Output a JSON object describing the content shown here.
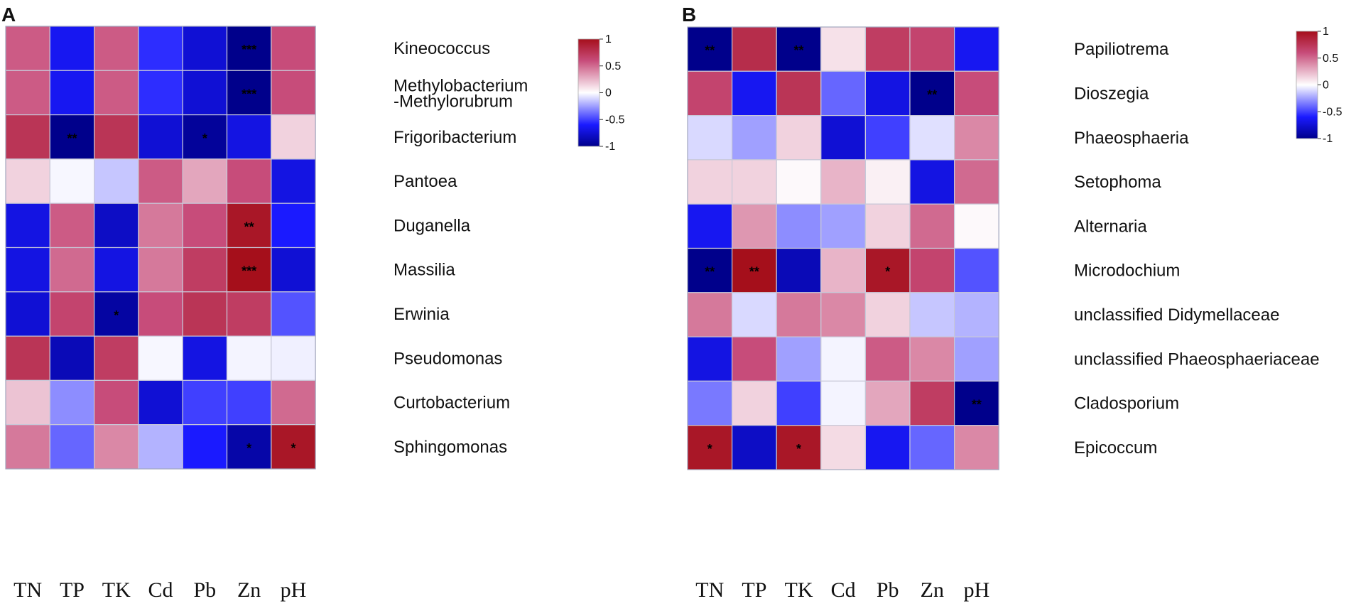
{
  "colors": {
    "negative": "#00008b",
    "mid_negative": "#1a1aff",
    "zero": "#ffffff",
    "mid_positive": "#c74c7a",
    "positive": "#a50f1b",
    "grid": "#c8c8d8"
  },
  "chart_data": [
    {
      "type": "heatmap",
      "panel": "A",
      "columns": [
        "TN",
        "TP",
        "TK",
        "Cd",
        "Pb",
        "Zn",
        "pH"
      ],
      "rows": [
        {
          "label": "Kineococcus",
          "values": [
            0.55,
            -0.65,
            0.55,
            -0.55,
            -0.75,
            -1.0,
            0.6
          ],
          "stars": [
            "",
            "",
            "",
            "",
            "",
            "***",
            ""
          ]
        },
        {
          "label": "Methylobacterium\n-Methylorubrum",
          "values": [
            0.55,
            -0.65,
            0.55,
            -0.55,
            -0.75,
            -1.0,
            0.6
          ],
          "stars": [
            "",
            "",
            "",
            "",
            "",
            "***",
            ""
          ]
        },
        {
          "label": "Frigoribacterium",
          "values": [
            0.75,
            -1.0,
            0.75,
            -0.75,
            -0.95,
            -0.7,
            0.15
          ],
          "stars": [
            "",
            "**",
            "",
            "",
            "*",
            "",
            ""
          ]
        },
        {
          "label": "Pantoea",
          "values": [
            0.15,
            -0.02,
            -0.15,
            0.55,
            0.3,
            0.6,
            -0.7
          ],
          "stars": [
            "",
            "",
            "",
            "",
            "",
            "",
            ""
          ]
        },
        {
          "label": "Duganella",
          "values": [
            -0.7,
            0.55,
            -0.8,
            0.45,
            0.6,
            0.95,
            -0.6
          ],
          "stars": [
            "",
            "",
            "",
            "",
            "",
            "**",
            ""
          ]
        },
        {
          "label": "Massilia",
          "values": [
            -0.7,
            0.5,
            -0.7,
            0.45,
            0.7,
            1.0,
            -0.75
          ],
          "stars": [
            "",
            "",
            "",
            "",
            "",
            "***",
            ""
          ]
        },
        {
          "label": "Erwinia",
          "values": [
            -0.75,
            0.65,
            -0.92,
            0.6,
            0.75,
            0.7,
            -0.45
          ],
          "stars": [
            "",
            "",
            "*",
            "",
            "",
            "",
            ""
          ]
        },
        {
          "label": "Pseudomonas",
          "values": [
            0.75,
            -0.85,
            0.7,
            -0.02,
            -0.7,
            -0.03,
            -0.04
          ],
          "stars": [
            "",
            "",
            "",
            "",
            "",
            "",
            ""
          ]
        },
        {
          "label": "Curtobacterium",
          "values": [
            0.2,
            -0.3,
            0.6,
            -0.75,
            -0.5,
            -0.5,
            0.5
          ],
          "stars": [
            "",
            "",
            "",
            "",
            "",
            "",
            ""
          ]
        },
        {
          "label": "Sphingomonas",
          "values": [
            0.45,
            -0.4,
            0.4,
            -0.2,
            -0.6,
            -0.9,
            0.95
          ],
          "stars": [
            "",
            "",
            "",
            "",
            "",
            "*",
            "*"
          ]
        }
      ],
      "legend": {
        "min": -1,
        "max": 1,
        "ticks": [
          "1",
          "0.5",
          "0",
          "-0.5",
          "-1"
        ]
      }
    },
    {
      "type": "heatmap",
      "panel": "B",
      "columns": [
        "TN",
        "TP",
        "TK",
        "Cd",
        "Pb",
        "Zn",
        "pH"
      ],
      "rows": [
        {
          "label": "Papiliotrema",
          "values": [
            -1.0,
            0.8,
            -1.0,
            0.1,
            0.7,
            0.65,
            -0.65
          ],
          "stars": [
            "**",
            "",
            "**",
            "",
            "",
            "",
            ""
          ]
        },
        {
          "label": "Dioszegia",
          "values": [
            0.65,
            -0.65,
            0.75,
            -0.4,
            -0.7,
            -1.0,
            0.6
          ],
          "stars": [
            "",
            "",
            "",
            "",
            "",
            "**",
            ""
          ]
        },
        {
          "label": "Phaeosphaeria",
          "values": [
            -0.1,
            -0.25,
            0.15,
            -0.75,
            -0.5,
            -0.08,
            0.4
          ],
          "stars": [
            "",
            "",
            "",
            "",
            "",
            "",
            ""
          ]
        },
        {
          "label": "Setophoma",
          "values": [
            0.15,
            0.15,
            0.02,
            0.25,
            0.05,
            -0.7,
            0.5
          ],
          "stars": [
            "",
            "",
            "",
            "",
            "",
            "",
            ""
          ]
        },
        {
          "label": "Alternaria",
          "values": [
            -0.65,
            0.35,
            -0.3,
            -0.25,
            0.15,
            0.5,
            0.02
          ],
          "stars": [
            "",
            "",
            "",
            "",
            "",
            "",
            ""
          ]
        },
        {
          "label": "Microdochium",
          "values": [
            -1.0,
            1.0,
            -0.85,
            0.25,
            0.95,
            0.65,
            -0.45
          ],
          "stars": [
            "**",
            "**",
            "",
            "",
            "*",
            "",
            ""
          ]
        },
        {
          "label": "unclassified  Didymellaceae",
          "values": [
            0.45,
            -0.1,
            0.45,
            0.4,
            0.15,
            -0.15,
            -0.2
          ],
          "stars": [
            "",
            "",
            "",
            "",
            "",
            "",
            ""
          ]
        },
        {
          "label": "unclassified  Phaeosphaeriaceae",
          "values": [
            -0.7,
            0.6,
            -0.25,
            -0.03,
            0.55,
            0.4,
            -0.25
          ],
          "stars": [
            "",
            "",
            "",
            "",
            "",
            "",
            ""
          ]
        },
        {
          "label": "Cladosporium",
          "values": [
            -0.35,
            0.15,
            -0.5,
            -0.03,
            0.3,
            0.7,
            -1.0
          ],
          "stars": [
            "",
            "",
            "",
            "",
            "",
            "",
            "**"
          ]
        },
        {
          "label": "Epicoccum",
          "values": [
            0.95,
            -0.8,
            0.95,
            0.12,
            -0.65,
            -0.4,
            0.4
          ],
          "stars": [
            "*",
            "",
            "*",
            "",
            "",
            "",
            ""
          ]
        }
      ],
      "legend": {
        "min": -1,
        "max": 1,
        "ticks": [
          "1",
          "0.5",
          "0",
          "-0.5",
          "-1"
        ]
      }
    }
  ]
}
